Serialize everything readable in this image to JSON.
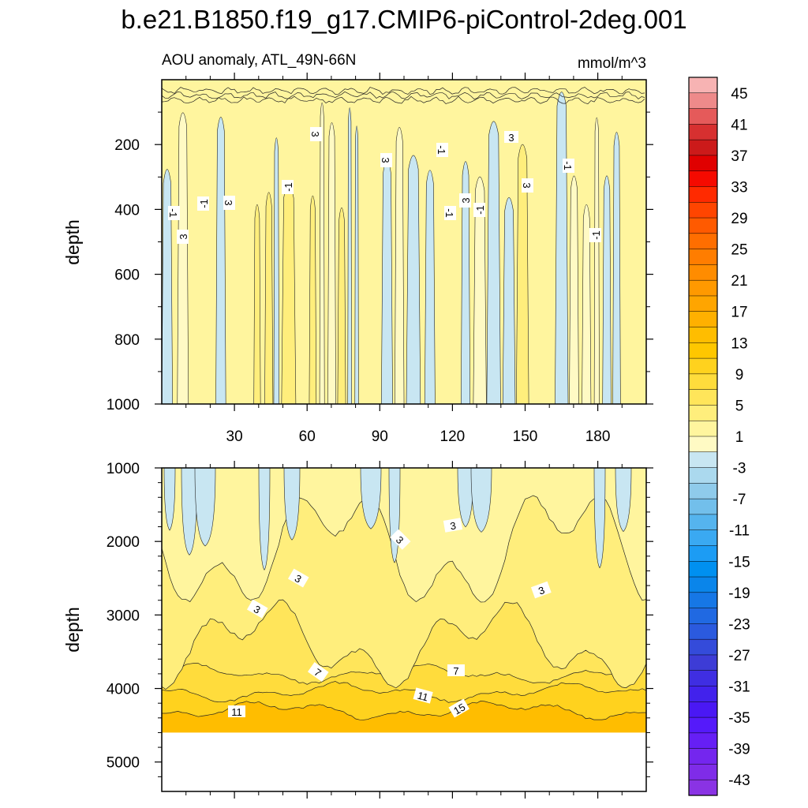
{
  "title": "b.e21.B1850.f19_g17.CMIP6-piControl-2deg.001",
  "subtitle_left": "AOU anomaly, ATL_49N-66N",
  "subtitle_right": "mmol/m^3",
  "chart_data": [
    {
      "type": "heatmap",
      "panel": "upper",
      "ylabel": "depth",
      "ylim": [
        0,
        1000
      ],
      "y_inverted": true,
      "xlim": [
        0,
        200
      ],
      "xticks": [
        30,
        60,
        90,
        120,
        150,
        180
      ],
      "yticks": [
        200,
        400,
        600,
        800,
        1000
      ],
      "contour_labels": [
        "3",
        "-1",
        "3",
        "-1",
        "3",
        "-1",
        "3",
        "-1",
        "-1",
        "3",
        "-1",
        "3",
        "-1",
        "-1",
        "3"
      ],
      "notes": "dense vertical filaments of weak AOU anomalies between about -3 and 5 mmol/m^3"
    },
    {
      "type": "heatmap",
      "panel": "lower",
      "ylabel": "depth",
      "ylim": [
        1000,
        5400
      ],
      "y_inverted": true,
      "xlim": [
        0,
        200
      ],
      "yticks": [
        1000,
        2000,
        3000,
        4000,
        5000
      ],
      "data_bottom_depth": 4600,
      "contour_labels": [
        "3",
        "3",
        "3",
        "3",
        "3",
        "7",
        "7",
        "11",
        "11",
        "15"
      ],
      "layers": [
        {
          "level": "1 to 3",
          "top_depth": 1000,
          "bottom_depth": 2100
        },
        {
          "level": "3 to 5",
          "top_depth": 2100,
          "bottom_depth": 3400
        },
        {
          "level": "5 to 7",
          "top_depth": 3400,
          "bottom_depth": 3800
        },
        {
          "level": "7 to 9",
          "top_depth": 3800,
          "bottom_depth": 4050
        },
        {
          "level": "9 to 13",
          "top_depth": 4050,
          "bottom_depth": 4300
        },
        {
          "level": "13 to 17",
          "top_depth": 4300,
          "bottom_depth": 4600
        }
      ]
    },
    {
      "type": "colorbar",
      "levels": [
        47,
        45,
        43,
        41,
        39,
        37,
        35,
        33,
        31,
        29,
        27,
        25,
        23,
        21,
        19,
        17,
        15,
        13,
        11,
        9,
        7,
        5,
        3,
        1,
        -1,
        -3,
        -5,
        -7,
        -9,
        -11,
        -13,
        -15,
        -17,
        -19,
        -21,
        -23,
        -25,
        -27,
        -29,
        -31,
        -33,
        -35,
        -37,
        -39,
        -41,
        -43,
        -45
      ],
      "tick_labels": [
        "45",
        "41",
        "37",
        "33",
        "29",
        "25",
        "21",
        "17",
        "13",
        "9",
        "5",
        "1",
        "-3",
        "-7",
        "-11",
        "-15",
        "-19",
        "-23",
        "-27",
        "-31",
        "-35",
        "-39",
        "-43"
      ],
      "colors": [
        "#f7b3b3",
        "#ee8a8a",
        "#e55a5a",
        "#d73030",
        "#cc1a1a",
        "#e00000",
        "#f50a00",
        "#ff2a00",
        "#ff4500",
        "#ff5a00",
        "#ff6e00",
        "#ff7d00",
        "#ff8c00",
        "#ff9900",
        "#ffa500",
        "#ffb000",
        "#ffbd00",
        "#ffc700",
        "#ffd21e",
        "#ffdc3c",
        "#ffe55a",
        "#ffee7c",
        "#fff59e",
        "#fffac4",
        "#c8e6f2",
        "#abd9ee",
        "#8fcbeb",
        "#72bfeb",
        "#55b4ee",
        "#3aa9f2",
        "#1c9cf4",
        "#0090f0",
        "#0a85ea",
        "#1677e6",
        "#2069e2",
        "#2b5ade",
        "#344bda",
        "#3d3cd6",
        "#3f2ee2",
        "#4222ec",
        "#4a18f4",
        "#551afa",
        "#661ff5",
        "#7426ee",
        "#7f2ce8",
        "#8a33e4"
      ]
    }
  ]
}
